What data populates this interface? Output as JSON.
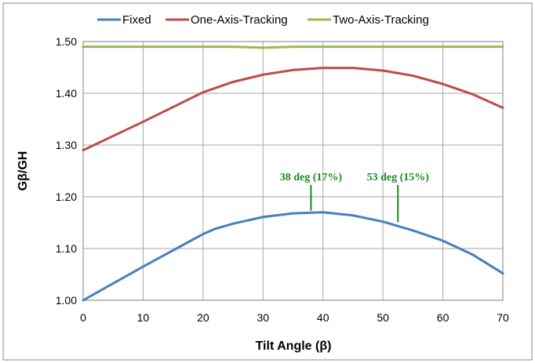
{
  "chart_data": {
    "type": "line",
    "title": "",
    "xlabel": "Tilt Angle (β)",
    "ylabel": "Gβ/GH",
    "xlim": [
      0,
      70
    ],
    "ylim": [
      1.0,
      1.5
    ],
    "x_ticks": [
      "0",
      "10",
      "20",
      "30",
      "40",
      "50",
      "60",
      "70"
    ],
    "y_ticks": [
      "1.00",
      "1.10",
      "1.20",
      "1.30",
      "1.40",
      "1.50"
    ],
    "grid": true,
    "legend": "top",
    "series": [
      {
        "name": "Fixed",
        "color": "#4a7ebb",
        "x": [
          0,
          10,
          20,
          22,
          25,
          30,
          35,
          40,
          45,
          50,
          55,
          60,
          65,
          70
        ],
        "y": [
          1.0,
          1.065,
          1.128,
          1.138,
          1.148,
          1.161,
          1.168,
          1.17,
          1.164,
          1.152,
          1.135,
          1.115,
          1.088,
          1.052
        ]
      },
      {
        "name": "One-Axis-Tracking",
        "color": "#be4b48",
        "x": [
          0,
          10,
          20,
          25,
          30,
          35,
          40,
          45,
          50,
          55,
          60,
          65,
          70
        ],
        "y": [
          1.29,
          1.345,
          1.402,
          1.422,
          1.436,
          1.445,
          1.449,
          1.449,
          1.444,
          1.434,
          1.418,
          1.398,
          1.372
        ]
      },
      {
        "name": "Two-Axis-Tracking",
        "color": "#98b954",
        "x": [
          0,
          10,
          20,
          25,
          30,
          35,
          40,
          50,
          60,
          70
        ],
        "y": [
          1.49,
          1.49,
          1.49,
          1.49,
          1.488,
          1.49,
          1.49,
          1.49,
          1.49,
          1.49
        ]
      }
    ],
    "annotations": [
      {
        "text": "38 deg (17%)",
        "x": 38,
        "y": 1.17,
        "color": "#1a8a1a"
      },
      {
        "text": "53 deg (15%)",
        "x": 52.5,
        "y": 1.148,
        "color": "#1a8a1a"
      }
    ]
  }
}
